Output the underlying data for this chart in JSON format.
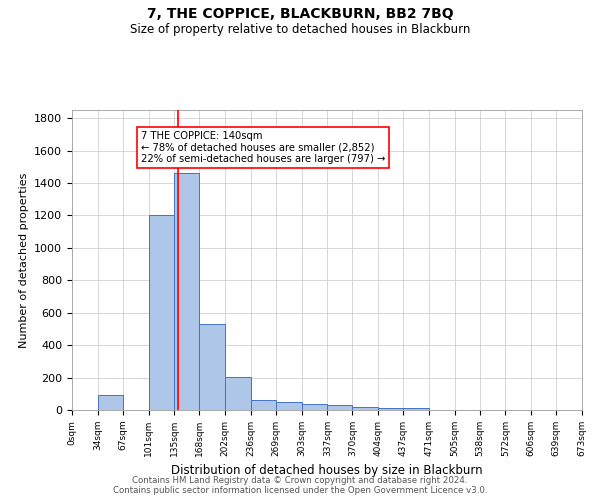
{
  "title": "7, THE COPPICE, BLACKBURN, BB2 7BQ",
  "subtitle": "Size of property relative to detached houses in Blackburn",
  "xlabel": "Distribution of detached houses by size in Blackburn",
  "ylabel": "Number of detached properties",
  "footer1": "Contains HM Land Registry data © Crown copyright and database right 2024.",
  "footer2": "Contains public sector information licensed under the Open Government Licence v3.0.",
  "bin_edges": [
    0,
    34,
    67,
    101,
    135,
    168,
    202,
    236,
    269,
    303,
    337,
    370,
    404,
    437,
    471,
    505,
    538,
    572,
    606,
    639,
    673
  ],
  "bin_labels": [
    "0sqm",
    "34sqm",
    "67sqm",
    "101sqm",
    "135sqm",
    "168sqm",
    "202sqm",
    "236sqm",
    "269sqm",
    "303sqm",
    "337sqm",
    "370sqm",
    "404sqm",
    "437sqm",
    "471sqm",
    "505sqm",
    "538sqm",
    "572sqm",
    "606sqm",
    "639sqm",
    "673sqm"
  ],
  "bar_heights": [
    0,
    90,
    0,
    1200,
    1460,
    530,
    205,
    60,
    50,
    40,
    30,
    20,
    10,
    10,
    0,
    0,
    0,
    0,
    0,
    0
  ],
  "bar_color": "#aec6e8",
  "bar_edge_color": "#4472c4",
  "vline_x": 140,
  "vline_color": "red",
  "annotation_text": "7 THE COPPICE: 140sqm\n← 78% of detached houses are smaller (2,852)\n22% of semi-detached houses are larger (797) →",
  "ylim": [
    0,
    1850
  ],
  "yticks": [
    0,
    200,
    400,
    600,
    800,
    1000,
    1200,
    1400,
    1600,
    1800
  ],
  "grid_color": "#d0d0d0",
  "background_color": "#ffffff"
}
